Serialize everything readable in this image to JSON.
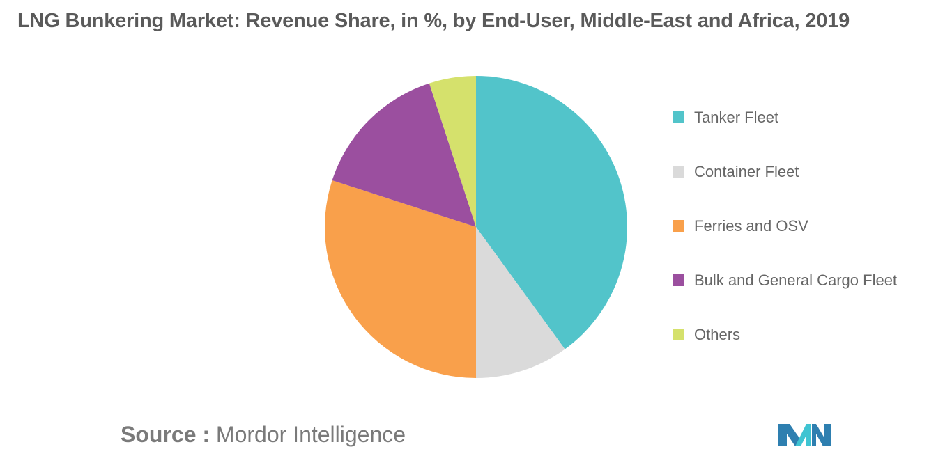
{
  "title": "LNG Bunkering Market: Revenue Share, in %, by End-User, Middle-East and Africa, 2019",
  "chart_data": {
    "type": "pie",
    "title": "LNG Bunkering Market: Revenue Share, in %, by End-User, Middle-East and Africa, 2019",
    "categories": [
      "Tanker Fleet",
      "Container Fleet",
      "Ferries and OSV",
      "Bulk and General Cargo Fleet",
      "Others"
    ],
    "values": [
      40,
      10,
      30,
      15,
      5
    ],
    "colors": [
      "#52c4ca",
      "#dadada",
      "#f9a04b",
      "#9b4f9f",
      "#d5e16c"
    ],
    "legend_position": "right"
  },
  "source": {
    "label": "Source :",
    "value": "Mordor Intelligence"
  },
  "logo": {
    "icon": "mordor-intelligence-logo",
    "colors": [
      "#2e7fb0",
      "#3fc4d2"
    ]
  }
}
